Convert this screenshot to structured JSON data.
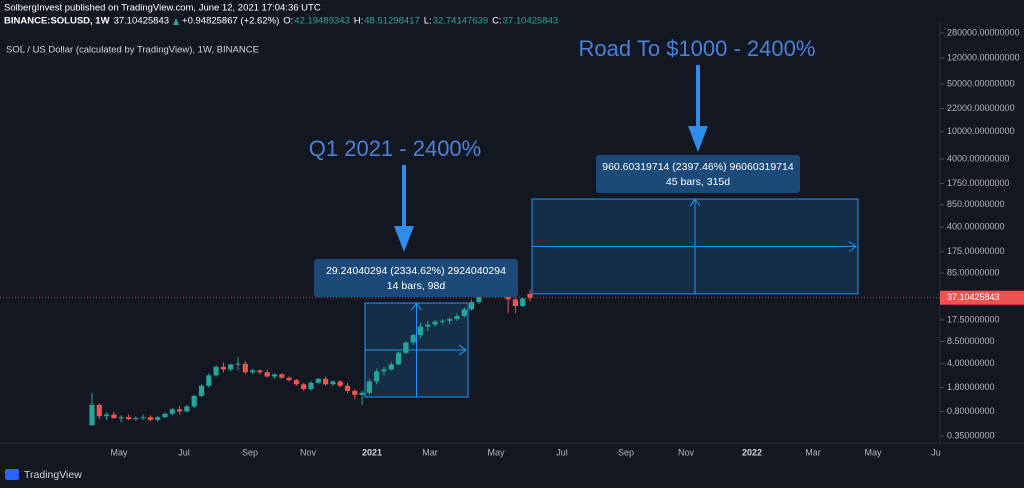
{
  "chart_data": {
    "type": "candlestick",
    "header": {
      "publisher": "SolbergInvest published on TradingView.com, June 12, 2021 17:04:36 UTC",
      "symbol": "BINANCE:SOLUSD, 1W",
      "last": "37.10425843",
      "change": "+0.94825867 (+2.62%)",
      "o_label": "O:",
      "o": "42.19489343",
      "h_label": "H:",
      "h": "48.51298417",
      "l_label": "L:",
      "l": "32.74147639",
      "c_label": "C:",
      "c": "37.10425843"
    },
    "legend_title": "SOL / US Dollar (calculated by TradingView), 1W, BINANCE",
    "log_scale": true,
    "grid": false,
    "up_color": "#26a69a",
    "down_color": "#ef5350",
    "open": [
      0.5,
      1.0,
      0.68,
      0.72,
      0.64,
      0.66,
      0.62,
      0.64,
      0.66,
      0.6,
      0.66,
      0.74,
      0.86,
      0.8,
      0.95,
      1.35,
      1.9,
      2.7,
      3.6,
      3.3,
      3.9,
      4.0,
      3.0,
      3.2,
      3.0,
      2.6,
      2.8,
      2.5,
      2.3,
      2.0,
      1.7,
      2.1,
      2.4,
      2.0,
      2.2,
      1.9,
      1.6,
      1.4,
      1.5,
      2.2,
      3.1,
      3.3,
      3.9,
      5.8,
      8.2,
      10.5,
      14,
      15,
      16.5,
      17,
      18,
      20,
      25,
      32,
      45,
      44,
      48,
      46,
      35,
      28,
      42.19489343
    ],
    "high": [
      1.5,
      1.05,
      0.78,
      0.8,
      0.7,
      0.72,
      0.68,
      0.72,
      0.7,
      0.68,
      0.78,
      0.9,
      0.95,
      1.0,
      1.4,
      2.0,
      2.9,
      3.8,
      4.2,
      4.0,
      5.0,
      4.4,
      3.4,
      3.3,
      3.3,
      2.9,
      2.9,
      2.6,
      2.4,
      2.1,
      2.2,
      2.5,
      2.6,
      2.3,
      2.3,
      2.1,
      1.7,
      1.6,
      2.4,
      3.4,
      3.6,
      4.2,
      6.0,
      8.5,
      11,
      16,
      17,
      17.5,
      18,
      19,
      22,
      27,
      35,
      48,
      50,
      50,
      52,
      56,
      37,
      37,
      48.51298417
    ],
    "low": [
      0.5,
      0.62,
      0.6,
      0.62,
      0.55,
      0.6,
      0.58,
      0.6,
      0.58,
      0.56,
      0.64,
      0.7,
      0.72,
      0.78,
      0.9,
      1.3,
      1.8,
      2.6,
      3.0,
      3.1,
      3.2,
      2.8,
      2.8,
      2.8,
      2.5,
      2.4,
      2.4,
      2.2,
      1.9,
      1.6,
      1.6,
      2.0,
      1.9,
      1.9,
      1.8,
      1.5,
      1.2,
      1.0,
      1.4,
      2.0,
      2.7,
      3.2,
      3.8,
      5.5,
      7.5,
      9.5,
      12,
      14,
      15,
      15,
      17,
      19,
      24,
      30,
      38,
      42,
      40,
      22,
      22,
      27,
      32.74147639
    ],
    "close": [
      1.0,
      0.68,
      0.72,
      0.64,
      0.66,
      0.62,
      0.64,
      0.66,
      0.6,
      0.66,
      0.74,
      0.86,
      0.8,
      0.95,
      1.35,
      1.9,
      2.7,
      3.6,
      3.3,
      3.9,
      4.0,
      3.0,
      3.2,
      3.0,
      2.6,
      2.8,
      2.5,
      2.3,
      2.0,
      1.7,
      2.1,
      2.4,
      2.0,
      2.2,
      1.9,
      1.6,
      1.4,
      1.5,
      2.2,
      3.1,
      3.3,
      3.9,
      5.8,
      8.2,
      10.5,
      14,
      15,
      16.5,
      17,
      18,
      20,
      25,
      32,
      45,
      44,
      48,
      46,
      35,
      28,
      36.15599976,
      37.10425843
    ],
    "ylim": [
      0.276,
      405700
    ],
    "yticks": [
      {
        "value": 280000,
        "label": "280000.00000000"
      },
      {
        "value": 120000,
        "label": "120000.00000000"
      },
      {
        "value": 50000,
        "label": "50000.00000000"
      },
      {
        "value": 22000,
        "label": "22000.00000000"
      },
      {
        "value": 10000,
        "label": "10000.00000000"
      },
      {
        "value": 4000,
        "label": "4000.00000000"
      },
      {
        "value": 1750,
        "label": "1750.00000000"
      },
      {
        "value": 850,
        "label": "850.00000000"
      },
      {
        "value": 400,
        "label": "400.00000000"
      },
      {
        "value": 175,
        "label": "175.00000000"
      },
      {
        "value": 85,
        "label": "85.00000000"
      },
      {
        "value": 17.5,
        "label": "17.50000000"
      },
      {
        "value": 8.5,
        "label": "8.50000000"
      },
      {
        "value": 4,
        "label": "4.00000000"
      },
      {
        "value": 1.8,
        "label": "1.80000000"
      },
      {
        "value": 0.8,
        "label": "0.80000000"
      },
      {
        "value": 0.35,
        "label": "0.35000000"
      }
    ],
    "x_labels": [
      "May",
      "Jul",
      "Sep",
      "Nov",
      "2021",
      "Mar",
      "May",
      "Jul",
      "Sep",
      "Nov",
      "2022",
      "Mar",
      "May",
      "Ju"
    ],
    "annotations": [
      {
        "title": "Q1 2021 - 2400%",
        "line1": "29.24040294 (2334.62%) 2924040294",
        "line2": "14 bars, 98d",
        "price_range": [
          1.3,
          31
        ]
      },
      {
        "title": "Road To $1000 - 2400%",
        "line1": "960.60319714 (2397.46%) 96060319714",
        "line2": "45 bars, 315d",
        "price_range": [
          42.2,
          1034
        ]
      }
    ],
    "brand": "TradingView"
  }
}
